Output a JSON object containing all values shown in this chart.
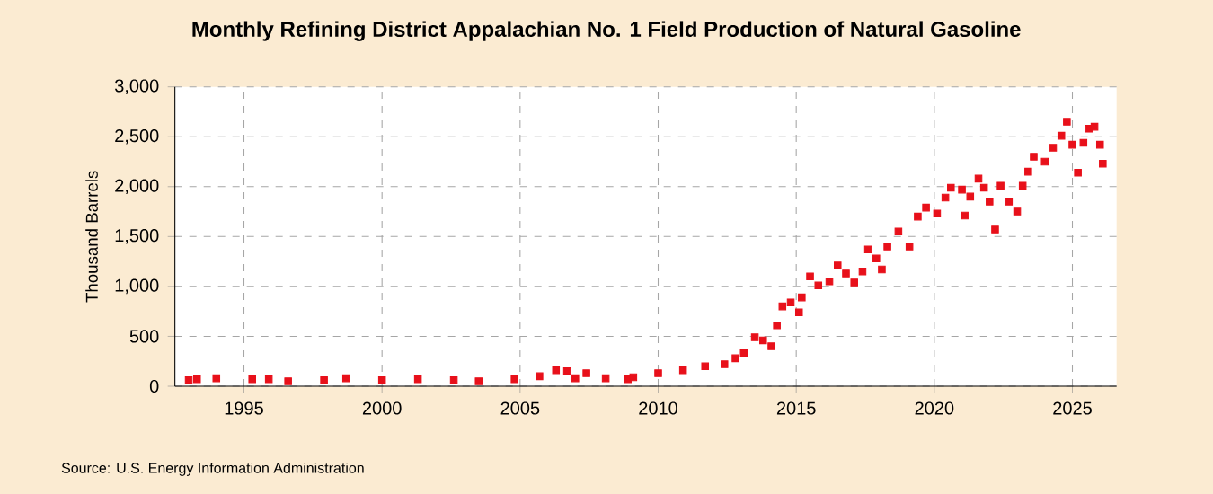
{
  "chart_data": {
    "type": "scatter",
    "title": "Monthly Refining District Appalachian No. 1 Field Production of Natural Gasoline",
    "ylabel": "Thousand Barrels",
    "annotations": [
      "Source: U.S. Energy Information Administration"
    ],
    "marker": "square",
    "grid": true,
    "xlim": [
      1992.5,
      2026.6
    ],
    "xticks": [
      1995,
      2000,
      2005,
      2010,
      2015,
      2020,
      2025
    ],
    "ylim": [
      0,
      3000
    ],
    "yticks": [
      {
        "value": 0,
        "label": "0"
      },
      {
        "value": 500,
        "label": "500"
      },
      {
        "value": 1000,
        "label": "1,000"
      },
      {
        "value": 1500,
        "label": "1,500"
      },
      {
        "value": 2000,
        "label": "2,000"
      },
      {
        "value": 2500,
        "label": "2,500"
      },
      {
        "value": 3000,
        "label": "3,000"
      }
    ],
    "series": [
      {
        "color": "#e8101a",
        "x": [
          1993.0,
          1993.3,
          1994.0,
          1995.3,
          1995.9,
          1996.6,
          1997.9,
          1998.7,
          2000.0,
          2001.3,
          2002.6,
          2003.5,
          2004.8,
          2005.7,
          2006.3,
          2006.7,
          2007.0,
          2007.4,
          2008.1,
          2008.9,
          2009.1,
          2010.0,
          2010.9,
          2011.7,
          2012.4,
          2012.8,
          2013.1,
          2013.5,
          2013.8,
          2014.1,
          2014.3,
          2014.5,
          2014.8,
          2015.1,
          2015.2,
          2015.5,
          2015.8,
          2016.2,
          2016.5,
          2016.8,
          2017.1,
          2017.4,
          2017.6,
          2017.9,
          2018.1,
          2018.3,
          2018.7,
          2019.1,
          2019.4,
          2019.7,
          2020.1,
          2020.4,
          2020.6,
          2021.0,
          2021.1,
          2021.3,
          2021.6,
          2021.8,
          2022.0,
          2022.2,
          2022.4,
          2022.7,
          2023.0,
          2023.2,
          2023.4,
          2023.6,
          2024.0,
          2024.3,
          2024.6,
          2024.8,
          2025.0,
          2025.2,
          2025.4,
          2025.6,
          2025.8,
          2026.0,
          2026.1
        ],
        "values": [
          60,
          70,
          80,
          70,
          70,
          50,
          60,
          80,
          60,
          70,
          60,
          50,
          70,
          100,
          160,
          150,
          80,
          130,
          80,
          70,
          90,
          130,
          160,
          200,
          220,
          280,
          330,
          490,
          460,
          400,
          610,
          800,
          840,
          740,
          890,
          1100,
          1010,
          1050,
          1210,
          1130,
          1040,
          1150,
          1370,
          1280,
          1170,
          1400,
          1550,
          1400,
          1700,
          1790,
          1730,
          1890,
          1990,
          1970,
          1710,
          1900,
          2080,
          1990,
          1850,
          1570,
          2010,
          1850,
          1750,
          2010,
          2150,
          2300,
          2250,
          2390,
          2510,
          2650,
          2420,
          2140,
          2440,
          2580,
          2600,
          2420,
          2230
        ]
      }
    ]
  }
}
